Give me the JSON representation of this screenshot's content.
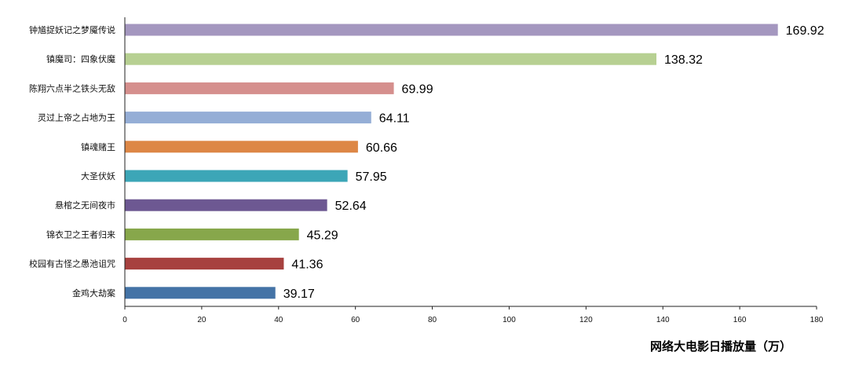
{
  "chart_data": {
    "type": "bar",
    "orientation": "horizontal",
    "categories": [
      "钟馗捉妖记之梦魇传说",
      "镇魔司：四象伏魔",
      "陈翔六点半之铁头无敌",
      "灵过上帝之占地为王",
      "镇魂赌王",
      "大圣伏妖",
      "悬棺之无间夜市",
      "锦衣卫之王者归来",
      "校园有古怪之愚池诅咒",
      "金鸡大劫案"
    ],
    "values": [
      169.92,
      138.32,
      69.99,
      64.11,
      60.66,
      57.95,
      52.64,
      45.29,
      41.36,
      39.17
    ],
    "value_labels": [
      "169.92",
      "138.32",
      "69.99",
      "64.11",
      "60.66",
      "57.95",
      "52.64",
      "45.29",
      "41.36",
      "39.17"
    ],
    "colors": [
      "#a497bf",
      "#b7d092",
      "#d58f8d",
      "#95aed6",
      "#dd8746",
      "#3ca6b7",
      "#6d5892",
      "#87a74b",
      "#a7413f",
      "#4473a6"
    ],
    "xlim": [
      0,
      180
    ],
    "xticks": [
      0,
      20,
      40,
      60,
      80,
      100,
      120,
      140,
      160,
      180
    ],
    "xtick_labels": [
      "0",
      "20",
      "40",
      "60",
      "80",
      "100",
      "120",
      "140",
      "160",
      "180"
    ],
    "xlabel": "网络大电影日播放量（万）",
    "ylabel": "",
    "title": "",
    "grid": false,
    "legend": "none"
  }
}
